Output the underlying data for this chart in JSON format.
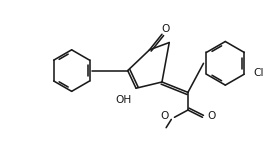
{
  "bg_color": "#ffffff",
  "lc": "#1a1a1a",
  "lw": 1.15,
  "fs": 7.2,
  "figsize": [
    2.71,
    1.64
  ],
  "dpi": 100,
  "xlim": [
    5,
    266
  ],
  "ylim": [
    5,
    159
  ]
}
